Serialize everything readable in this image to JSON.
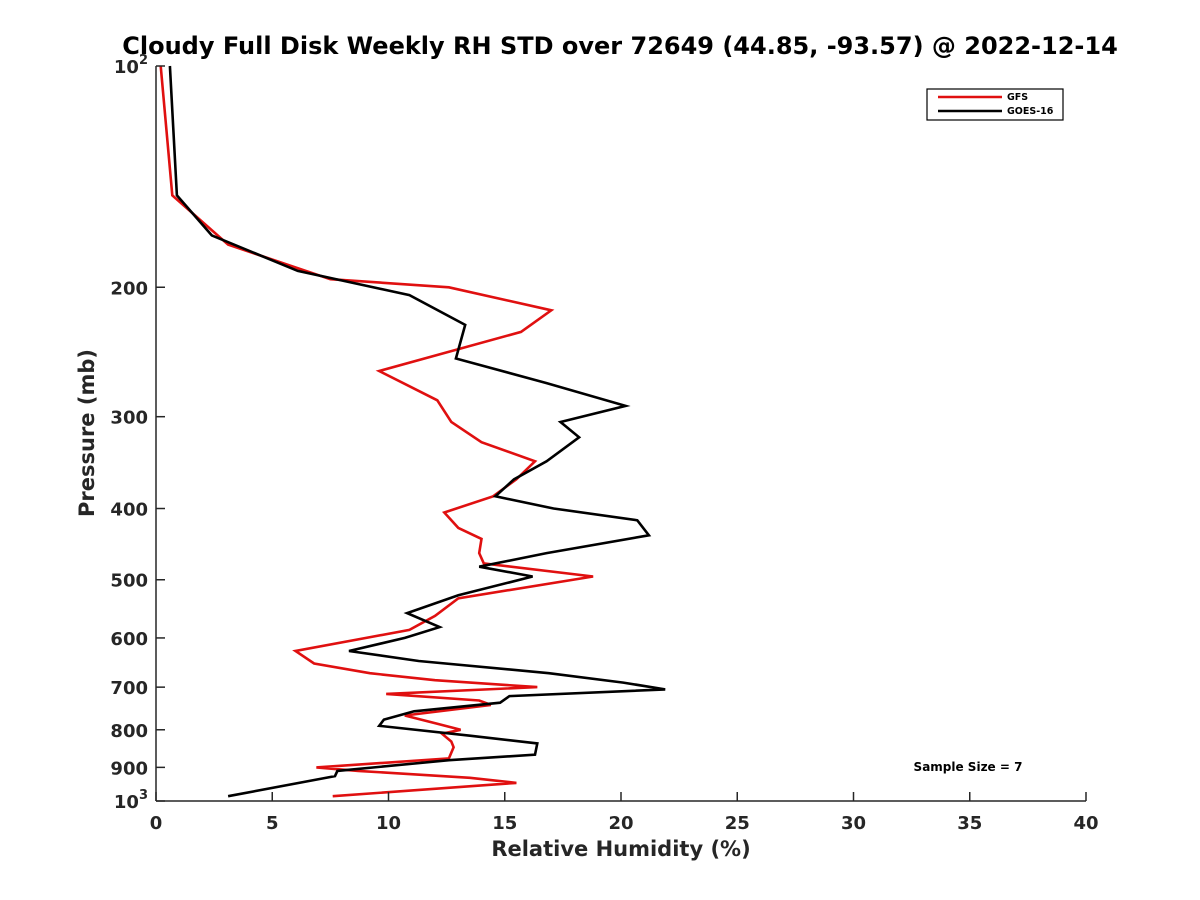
{
  "chart_data": {
    "type": "line",
    "title": "Cloudy Full Disk Weekly RH STD over 72649 (44.85, -93.57) @ 2022-12-14",
    "xlabel": "Relative Humidity (%)",
    "ylabel": "Pressure (mb)",
    "xlim": [
      0,
      40
    ],
    "ylim": [
      100,
      1000
    ],
    "y_scale": "log",
    "y_reversed": true,
    "x_ticks": [
      "0",
      "5",
      "10",
      "15",
      "20",
      "25",
      "30",
      "35",
      "40"
    ],
    "y_ticks": [
      {
        "value": 100,
        "base": "10",
        "exp": "2"
      },
      {
        "value": 200,
        "label": "200"
      },
      {
        "value": 300,
        "label": "300"
      },
      {
        "value": 400,
        "label": "400"
      },
      {
        "value": 500,
        "label": "500"
      },
      {
        "value": 600,
        "label": "600"
      },
      {
        "value": 700,
        "label": "700"
      },
      {
        "value": 800,
        "label": "800"
      },
      {
        "value": 900,
        "label": "900"
      },
      {
        "value": 1000,
        "base": "10",
        "exp": "3"
      }
    ],
    "grid": false,
    "legend_position": "top-right",
    "annotation": "Sample Size = 7",
    "series": [
      {
        "name": "GFS",
        "color": "#e01010",
        "points": [
          [
            0.2,
            100
          ],
          [
            0.7,
            150
          ],
          [
            3.1,
            175
          ],
          [
            7.5,
            195
          ],
          [
            12.6,
            200
          ],
          [
            17.0,
            215
          ],
          [
            15.7,
            230
          ],
          [
            9.6,
            260
          ],
          [
            12.1,
            285
          ],
          [
            12.7,
            305
          ],
          [
            14.0,
            325
          ],
          [
            16.3,
            345
          ],
          [
            15.5,
            365
          ],
          [
            14.5,
            385
          ],
          [
            12.4,
            405
          ],
          [
            13.0,
            425
          ],
          [
            14.0,
            440
          ],
          [
            13.9,
            460
          ],
          [
            14.1,
            475
          ],
          [
            18.8,
            495
          ],
          [
            13.0,
            530
          ],
          [
            12.0,
            560
          ],
          [
            10.9,
            585
          ],
          [
            6.0,
            625
          ],
          [
            6.8,
            650
          ],
          [
            9.2,
            670
          ],
          [
            12.0,
            685
          ],
          [
            16.4,
            700
          ],
          [
            9.9,
            715
          ],
          [
            13.9,
            730
          ],
          [
            14.4,
            740
          ],
          [
            10.7,
            765
          ],
          [
            12.1,
            785
          ],
          [
            13.1,
            800
          ],
          [
            12.3,
            810
          ],
          [
            12.7,
            830
          ],
          [
            12.8,
            845
          ],
          [
            12.6,
            875
          ],
          [
            6.9,
            900
          ],
          [
            8.7,
            910
          ],
          [
            13.5,
            930
          ],
          [
            15.5,
            945
          ],
          [
            7.6,
            985
          ]
        ]
      },
      {
        "name": "GOES-16",
        "color": "#000000",
        "points": [
          [
            0.6,
            100
          ],
          [
            0.9,
            150
          ],
          [
            2.4,
            170
          ],
          [
            6.1,
            190
          ],
          [
            10.9,
            205
          ],
          [
            13.3,
            225
          ],
          [
            12.9,
            250
          ],
          [
            16.8,
            270
          ],
          [
            20.2,
            290
          ],
          [
            17.4,
            305
          ],
          [
            18.2,
            320
          ],
          [
            16.8,
            345
          ],
          [
            15.4,
            365
          ],
          [
            14.6,
            385
          ],
          [
            17.1,
            400
          ],
          [
            20.7,
            415
          ],
          [
            21.2,
            435
          ],
          [
            16.8,
            460
          ],
          [
            13.9,
            480
          ],
          [
            16.2,
            495
          ],
          [
            13.0,
            525
          ],
          [
            10.8,
            555
          ],
          [
            12.2,
            580
          ],
          [
            10.7,
            600
          ],
          [
            8.3,
            625
          ],
          [
            11.3,
            645
          ],
          [
            16.9,
            670
          ],
          [
            20.1,
            690
          ],
          [
            21.9,
            705
          ],
          [
            15.2,
            720
          ],
          [
            14.8,
            735
          ],
          [
            11.1,
            755
          ],
          [
            9.8,
            775
          ],
          [
            9.6,
            790
          ],
          [
            13.5,
            815
          ],
          [
            16.4,
            835
          ],
          [
            16.3,
            865
          ],
          [
            12.6,
            880
          ],
          [
            7.8,
            910
          ],
          [
            7.7,
            925
          ],
          [
            3.1,
            985
          ]
        ]
      }
    ]
  }
}
